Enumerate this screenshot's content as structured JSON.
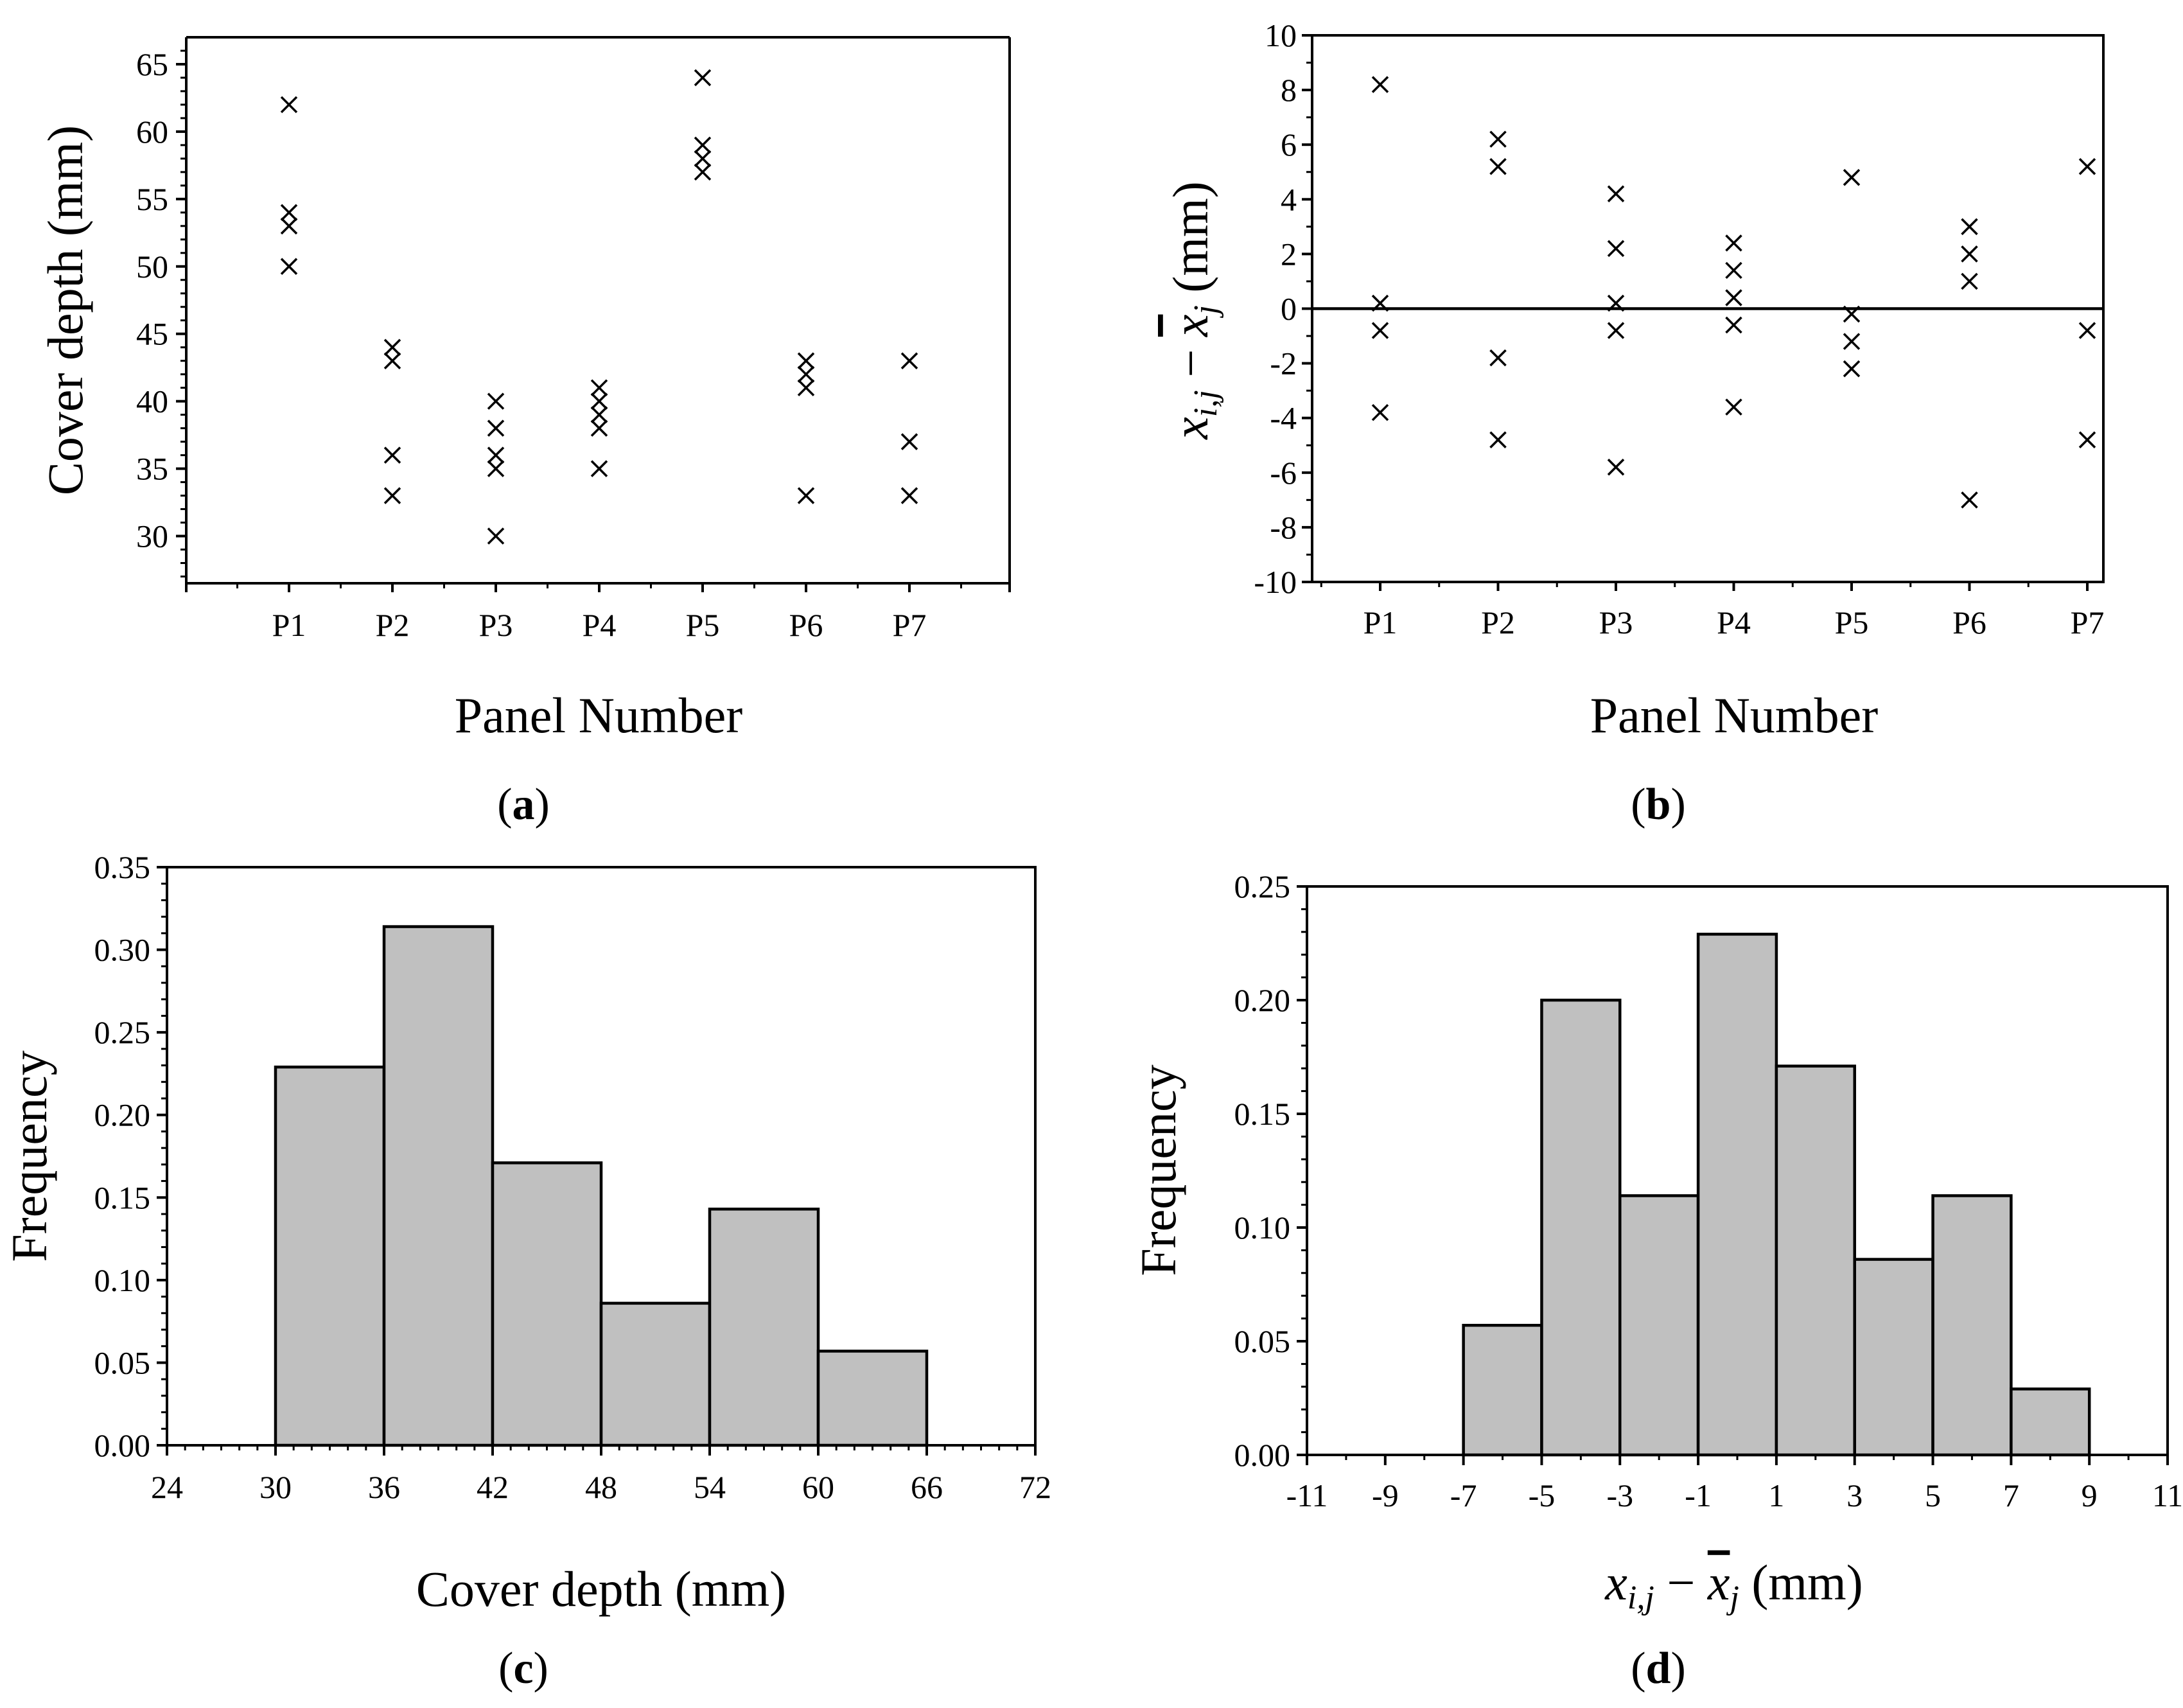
{
  "chart_data": [
    {
      "id": "a",
      "type": "scatter",
      "caption_label": "a",
      "xlabel": "Panel Number",
      "ylabel": "Cover depth (mm)",
      "categories": [
        "P1",
        "P2",
        "P3",
        "P4",
        "P5",
        "P6",
        "P7"
      ],
      "ylim": [
        26.5,
        67
      ],
      "yticks": [
        30,
        35,
        40,
        45,
        50,
        55,
        60,
        65
      ],
      "marker": "×",
      "points": [
        {
          "x": "P1",
          "y": 62
        },
        {
          "x": "P1",
          "y": 54
        },
        {
          "x": "P1",
          "y": 53
        },
        {
          "x": "P1",
          "y": 50
        },
        {
          "x": "P2",
          "y": 44
        },
        {
          "x": "P2",
          "y": 43
        },
        {
          "x": "P2",
          "y": 36
        },
        {
          "x": "P2",
          "y": 33
        },
        {
          "x": "P3",
          "y": 40
        },
        {
          "x": "P3",
          "y": 38
        },
        {
          "x": "P3",
          "y": 36
        },
        {
          "x": "P3",
          "y": 35
        },
        {
          "x": "P3",
          "y": 30
        },
        {
          "x": "P4",
          "y": 41
        },
        {
          "x": "P4",
          "y": 40
        },
        {
          "x": "P4",
          "y": 39
        },
        {
          "x": "P4",
          "y": 38
        },
        {
          "x": "P4",
          "y": 35
        },
        {
          "x": "P5",
          "y": 64
        },
        {
          "x": "P5",
          "y": 59
        },
        {
          "x": "P5",
          "y": 58
        },
        {
          "x": "P5",
          "y": 57
        },
        {
          "x": "P6",
          "y": 43
        },
        {
          "x": "P6",
          "y": 42
        },
        {
          "x": "P6",
          "y": 41
        },
        {
          "x": "P6",
          "y": 33
        },
        {
          "x": "P7",
          "y": 43
        },
        {
          "x": "P7",
          "y": 37
        },
        {
          "x": "P7",
          "y": 33
        }
      ]
    },
    {
      "id": "b",
      "type": "scatter",
      "caption_label": "b",
      "xlabel": "Panel Number",
      "ylabel_parts": {
        "var_x": "x",
        "sub_ij": "i,j",
        "minus": "−",
        "var_xbar": "x",
        "sub_j": "j",
        "unit": "(mm)"
      },
      "categories": [
        "P1",
        "P2",
        "P3",
        "P4",
        "P5",
        "P6",
        "P7"
      ],
      "ylim": [
        -10,
        10
      ],
      "yticks": [
        -10,
        -8,
        -6,
        -4,
        -2,
        0,
        2,
        4,
        6,
        8,
        10
      ],
      "reference_line_y": 0,
      "marker": "×",
      "points": [
        {
          "x": "P1",
          "y": 8.2
        },
        {
          "x": "P1",
          "y": 0.2
        },
        {
          "x": "P1",
          "y": -0.8
        },
        {
          "x": "P1",
          "y": -3.8
        },
        {
          "x": "P2",
          "y": 6.2
        },
        {
          "x": "P2",
          "y": 5.2
        },
        {
          "x": "P2",
          "y": -1.8
        },
        {
          "x": "P2",
          "y": -4.8
        },
        {
          "x": "P3",
          "y": 4.2
        },
        {
          "x": "P3",
          "y": 2.2
        },
        {
          "x": "P3",
          "y": 0.2
        },
        {
          "x": "P3",
          "y": -0.8
        },
        {
          "x": "P3",
          "y": -5.8
        },
        {
          "x": "P4",
          "y": 2.4
        },
        {
          "x": "P4",
          "y": 1.4
        },
        {
          "x": "P4",
          "y": 0.4
        },
        {
          "x": "P4",
          "y": -0.6
        },
        {
          "x": "P4",
          "y": -3.6
        },
        {
          "x": "P5",
          "y": 4.8
        },
        {
          "x": "P5",
          "y": -0.2
        },
        {
          "x": "P5",
          "y": -1.2
        },
        {
          "x": "P5",
          "y": -2.2
        },
        {
          "x": "P6",
          "y": 3.0
        },
        {
          "x": "P6",
          "y": 2.0
        },
        {
          "x": "P6",
          "y": 1.0
        },
        {
          "x": "P6",
          "y": -7.0
        },
        {
          "x": "P7",
          "y": 5.2
        },
        {
          "x": "P7",
          "y": -0.8
        },
        {
          "x": "P7",
          "y": -4.8
        }
      ]
    },
    {
      "id": "c",
      "type": "bar",
      "caption_label": "c",
      "xlabel": "Cover depth (mm)",
      "ylabel": "Frequency",
      "xlim": [
        24,
        72
      ],
      "xticks": [
        24,
        30,
        36,
        42,
        48,
        54,
        60,
        66,
        72
      ],
      "ylim": [
        0,
        0.35
      ],
      "yticks": [
        "0.00",
        "0.05",
        "0.10",
        "0.15",
        "0.20",
        "0.25",
        "0.30",
        "0.35"
      ],
      "bins": [
        {
          "start": 30,
          "end": 36,
          "value": 0.229
        },
        {
          "start": 36,
          "end": 42,
          "value": 0.314
        },
        {
          "start": 42,
          "end": 48,
          "value": 0.171
        },
        {
          "start": 48,
          "end": 54,
          "value": 0.086
        },
        {
          "start": 54,
          "end": 60,
          "value": 0.143
        },
        {
          "start": 60,
          "end": 66,
          "value": 0.057
        }
      ]
    },
    {
      "id": "d",
      "type": "bar",
      "caption_label": "d",
      "xlabel_parts": {
        "var_x": "x",
        "sub_ij": "i,j",
        "minus": "−",
        "var_xbar": "x",
        "sub_j": "j",
        "unit": "(mm)"
      },
      "ylabel": "Frequency",
      "xlim": [
        -11,
        11
      ],
      "xticks": [
        -11,
        -9,
        -7,
        -5,
        -3,
        -1,
        1,
        3,
        5,
        7,
        9,
        11
      ],
      "ylim": [
        0,
        0.25
      ],
      "yticks": [
        "0.00",
        "0.05",
        "0.10",
        "0.15",
        "0.20",
        "0.25"
      ],
      "bins": [
        {
          "start": -7,
          "end": -5,
          "value": 0.057
        },
        {
          "start": -5,
          "end": -3,
          "value": 0.2
        },
        {
          "start": -3,
          "end": -1,
          "value": 0.114
        },
        {
          "start": -1,
          "end": 1,
          "value": 0.229
        },
        {
          "start": 1,
          "end": 3,
          "value": 0.171
        },
        {
          "start": 3,
          "end": 5,
          "value": 0.086
        },
        {
          "start": 5,
          "end": 7,
          "value": 0.114
        },
        {
          "start": 7,
          "end": 9,
          "value": 0.029
        }
      ]
    }
  ]
}
